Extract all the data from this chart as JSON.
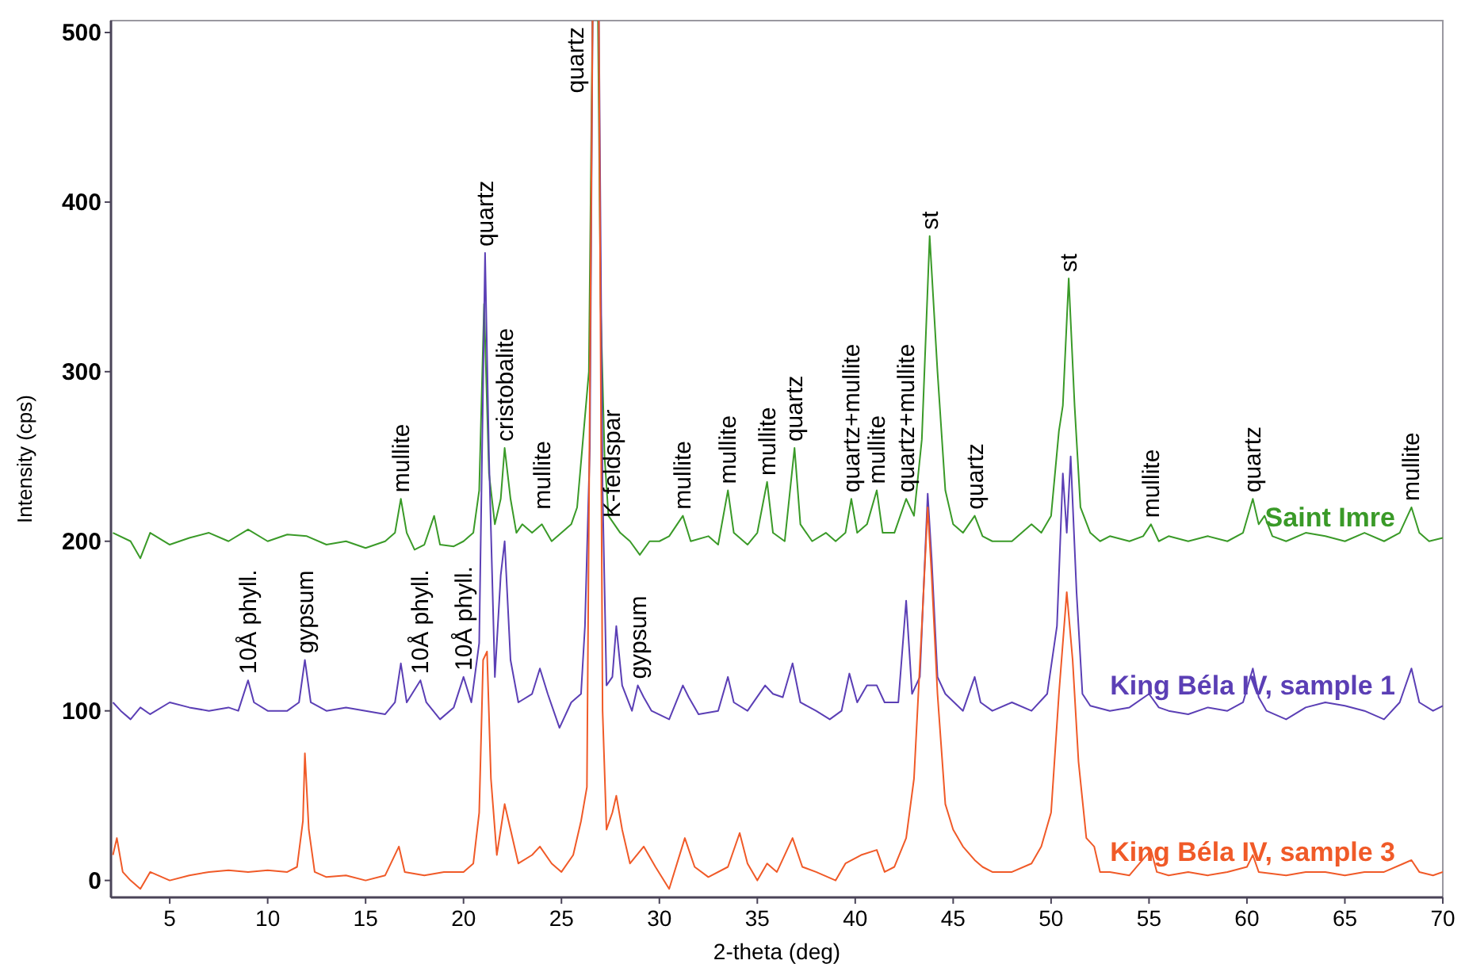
{
  "chart_data": {
    "type": "line",
    "xlabel": "2-theta (deg)",
    "ylabel": "Intensity (cps)",
    "xlim": [
      2,
      70
    ],
    "ylim": [
      -10,
      507
    ],
    "xticks": [
      5,
      10,
      15,
      20,
      25,
      30,
      35,
      40,
      45,
      50,
      55,
      60,
      65,
      70
    ],
    "yticks": [
      0,
      100,
      200,
      300,
      400,
      500
    ],
    "grid": false,
    "legend": false,
    "marker": "none",
    "line_style": "solid",
    "series": [
      {
        "name": "Saint Imre",
        "color": "#3a9a28",
        "x": [
          2.1,
          3,
          3.5,
          4,
          5,
          6,
          7,
          8,
          9,
          10,
          11,
          12,
          13,
          14,
          15,
          16,
          16.5,
          16.8,
          17.1,
          17.5,
          18,
          18.5,
          18.8,
          19.5,
          20,
          20.5,
          20.8,
          21.05,
          21.3,
          21.6,
          21.9,
          22.1,
          22.4,
          22.7,
          23,
          23.5,
          24,
          24.5,
          25,
          25.5,
          25.8,
          26.1,
          26.4,
          26.6,
          26.85,
          27,
          27.2,
          27.4,
          27.7,
          28,
          28.5,
          29,
          29.5,
          30,
          30.5,
          31.2,
          31.6,
          32.5,
          33,
          33.5,
          33.8,
          34.5,
          35,
          35.5,
          35.8,
          36.4,
          36.9,
          37.2,
          37.8,
          38.5,
          39,
          39.5,
          39.8,
          40.1,
          40.6,
          41.1,
          41.4,
          42,
          42.6,
          43,
          43.4,
          43.8,
          44.2,
          44.6,
          45,
          45.5,
          46.1,
          46.5,
          47,
          48,
          48.5,
          49,
          49.5,
          50,
          50.4,
          50.6,
          50.9,
          51.2,
          51.5,
          52,
          52.5,
          53,
          54,
          54.7,
          55.1,
          55.5,
          56,
          57,
          58,
          59,
          59.8,
          60.3,
          60.6,
          60.9,
          61.3,
          62,
          63,
          64,
          65,
          66,
          67,
          67.8,
          68.4,
          68.8,
          69.3,
          70
        ],
        "values": [
          205,
          200,
          190,
          205,
          198,
          202,
          205,
          200,
          207,
          200,
          204,
          203,
          198,
          200,
          196,
          200,
          205,
          225,
          205,
          195,
          198,
          215,
          198,
          197,
          200,
          205,
          230,
          340,
          240,
          210,
          225,
          255,
          225,
          205,
          210,
          205,
          210,
          200,
          205,
          210,
          220,
          260,
          300,
          null,
          null,
          340,
          250,
          215,
          210,
          205,
          200,
          192,
          200,
          200,
          203,
          215,
          200,
          203,
          198,
          230,
          205,
          198,
          205,
          235,
          205,
          200,
          255,
          210,
          200,
          205,
          200,
          205,
          225,
          205,
          210,
          230,
          205,
          205,
          225,
          215,
          260,
          380,
          300,
          230,
          210,
          205,
          215,
          203,
          200,
          200,
          205,
          210,
          205,
          215,
          265,
          280,
          355,
          280,
          220,
          205,
          200,
          203,
          200,
          203,
          210,
          200,
          203,
          200,
          203,
          200,
          205,
          225,
          210,
          215,
          203,
          200,
          205,
          203,
          200,
          205,
          200,
          205,
          220,
          205,
          200,
          202
        ]
      },
      {
        "name": "King Béla IV, sample 1",
        "color": "#5b3fb5",
        "x": [
          2.1,
          2.5,
          3,
          3.5,
          4,
          5,
          6,
          7,
          8,
          8.5,
          9,
          9.3,
          10,
          11,
          11.6,
          11.9,
          12.2,
          13,
          14,
          15,
          16,
          16.5,
          16.8,
          17.1,
          17.8,
          18.1,
          18.8,
          19.5,
          20,
          20.4,
          20.8,
          21.1,
          21.3,
          21.6,
          21.9,
          22.1,
          22.4,
          22.8,
          23.5,
          23.9,
          24.3,
          24.9,
          25.5,
          26,
          26.2,
          26.45,
          26.6,
          26.9,
          27.1,
          27.3,
          27.6,
          27.8,
          28.1,
          28.6,
          28.9,
          29.2,
          29.6,
          30.5,
          31.2,
          31.5,
          32,
          33,
          33.5,
          33.8,
          34.5,
          35.4,
          35.8,
          36.3,
          36.8,
          37.2,
          38,
          38.7,
          39.3,
          39.7,
          40.1,
          40.6,
          41.1,
          41.5,
          42.2,
          42.6,
          42.9,
          43.3,
          43.7,
          43.9,
          44.2,
          44.6,
          45.5,
          46.1,
          46.4,
          47,
          48,
          49,
          49.8,
          50.3,
          50.6,
          50.8,
          51,
          51.3,
          51.6,
          52,
          53,
          54,
          55,
          55.5,
          56,
          57,
          58,
          59,
          59.8,
          60.3,
          60.6,
          61,
          62,
          63,
          64,
          65,
          66,
          67,
          67.8,
          68.4,
          68.8,
          69.5,
          70
        ],
        "values": [
          105,
          100,
          95,
          102,
          98,
          105,
          102,
          100,
          102,
          100,
          118,
          105,
          100,
          100,
          105,
          130,
          105,
          100,
          102,
          100,
          98,
          105,
          128,
          105,
          118,
          105,
          95,
          102,
          120,
          105,
          140,
          370,
          250,
          120,
          180,
          200,
          130,
          105,
          110,
          125,
          110,
          90,
          105,
          110,
          150,
          255,
          null,
          null,
          230,
          115,
          120,
          150,
          115,
          100,
          115,
          108,
          100,
          95,
          115,
          108,
          98,
          100,
          120,
          105,
          100,
          115,
          110,
          108,
          128,
          105,
          100,
          95,
          100,
          122,
          105,
          115,
          115,
          105,
          105,
          165,
          110,
          120,
          228,
          190,
          120,
          110,
          100,
          120,
          105,
          100,
          105,
          100,
          110,
          150,
          240,
          205,
          250,
          170,
          110,
          103,
          100,
          102,
          110,
          102,
          100,
          98,
          102,
          100,
          105,
          125,
          108,
          100,
          95,
          102,
          105,
          103,
          100,
          95,
          105,
          125,
          105,
          100,
          103
        ]
      },
      {
        "name": "King Béla IV, sample 3",
        "color": "#f05a28",
        "x": [
          2.1,
          2.3,
          2.6,
          3,
          3.5,
          4,
          5,
          6,
          7,
          8,
          9,
          10,
          11,
          11.5,
          11.8,
          11.9,
          12.1,
          12.4,
          13,
          14,
          15,
          16,
          16.7,
          17,
          18,
          19,
          20,
          20.5,
          20.8,
          21,
          21.2,
          21.4,
          21.7,
          22.1,
          22.4,
          22.8,
          23.5,
          23.9,
          24.5,
          25,
          25.6,
          26,
          26.3,
          26.6,
          26.9,
          27.1,
          27.3,
          27.6,
          27.8,
          28.1,
          28.5,
          29.2,
          29.8,
          30.5,
          31.3,
          31.8,
          32.5,
          33.5,
          34.1,
          34.5,
          35,
          35.5,
          36,
          36.8,
          37.3,
          38,
          39,
          39.5,
          40.3,
          41.1,
          41.5,
          42,
          42.6,
          43,
          43.4,
          43.7,
          43.9,
          44.2,
          44.6,
          45,
          45.5,
          46.1,
          46.5,
          47,
          48,
          49,
          49.5,
          50,
          50.4,
          50.8,
          51.1,
          51.4,
          51.8,
          52.2,
          52.5,
          53,
          54,
          55.1,
          55.4,
          56,
          57,
          58,
          59,
          60,
          60.3,
          60.6,
          62,
          63,
          64,
          65,
          66,
          67,
          68,
          68.4,
          68.8,
          69.5,
          70
        ],
        "values": [
          15,
          25,
          5,
          0,
          -5,
          5,
          0,
          3,
          5,
          6,
          5,
          6,
          5,
          8,
          35,
          75,
          30,
          5,
          2,
          3,
          0,
          3,
          20,
          5,
          3,
          5,
          5,
          10,
          40,
          130,
          135,
          60,
          15,
          45,
          30,
          10,
          15,
          20,
          10,
          5,
          15,
          35,
          55,
          null,
          null,
          100,
          30,
          40,
          50,
          30,
          10,
          20,
          8,
          -5,
          25,
          8,
          2,
          8,
          28,
          10,
          0,
          10,
          5,
          25,
          8,
          5,
          0,
          10,
          15,
          18,
          5,
          8,
          25,
          60,
          150,
          220,
          180,
          110,
          45,
          30,
          20,
          12,
          8,
          5,
          5,
          10,
          20,
          40,
          110,
          170,
          130,
          70,
          25,
          20,
          5,
          5,
          3,
          18,
          5,
          3,
          5,
          3,
          5,
          8,
          15,
          5,
          3,
          5,
          5,
          3,
          5,
          5,
          10,
          12,
          5,
          3,
          5
        ]
      }
    ],
    "annotations": [
      {
        "text": "mullite",
        "x": 16.8,
        "y": 225
      },
      {
        "text": "quartz",
        "x": 21.1,
        "y": 370
      },
      {
        "text": "cristobalite",
        "x": 22.1,
        "y": 255
      },
      {
        "text": "mullite",
        "x": 24.0,
        "y": 215
      },
      {
        "text": "quartz",
        "x": 26.6
      },
      {
        "text": "K-feldspar",
        "x": 27.6,
        "y": 210
      },
      {
        "text": "mullite",
        "x": 31.2,
        "y": 215
      },
      {
        "text": "mullite",
        "x": 33.5,
        "y": 230
      },
      {
        "text": "mullite",
        "x": 35.5,
        "y": 235
      },
      {
        "text": "quartz",
        "x": 36.9,
        "y": 255
      },
      {
        "text": "quartz+mullite",
        "x": 39.8,
        "y": 225
      },
      {
        "text": "mullite",
        "x": 41.1,
        "y": 230
      },
      {
        "text": "quartz+mullite",
        "x": 42.6,
        "y": 225
      },
      {
        "text": "st",
        "x": 43.8,
        "y": 380
      },
      {
        "text": "quartz",
        "x": 46.1,
        "y": 215
      },
      {
        "text": "st",
        "x": 50.9,
        "y": 355
      },
      {
        "text": "mullite",
        "x": 55.1,
        "y": 210
      },
      {
        "text": "quartz",
        "x": 60.3,
        "y": 225
      },
      {
        "text": "mullite",
        "x": 68.4,
        "y": 220
      },
      {
        "text": "10Å phyll.",
        "x": 9.0,
        "y": 118
      },
      {
        "text": "gypsum",
        "x": 11.9,
        "y": 130
      },
      {
        "text": "10Å phyll.",
        "x": 17.8,
        "y": 118
      },
      {
        "text": "10Å phyll.",
        "x": 20.0,
        "y": 120
      },
      {
        "text": "gypsum",
        "x": 28.9,
        "y": 115
      }
    ]
  }
}
